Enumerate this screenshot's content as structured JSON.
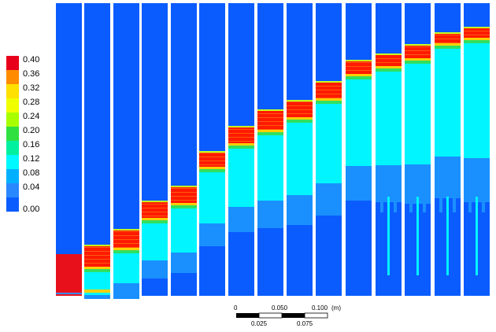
{
  "legend": {
    "labels": [
      "0.40",
      "0.36",
      "0.32",
      "0.28",
      "0.24",
      "0.20",
      "0.16",
      "0.12",
      "0.08",
      "0.04",
      "0.00"
    ],
    "colors": [
      "#ff1a00",
      "#ff8a00",
      "#ffd800",
      "#f2ff00",
      "#8cff00",
      "#20e83a",
      "#00ffb0",
      "#00fff0",
      "#00b8ff",
      "#3a8cff",
      "#0a5cff"
    ]
  },
  "scale_bar": {
    "top_labels": [
      "0",
      "0.050",
      "0.100"
    ],
    "unit": "(m)",
    "bottom_labels": [
      "0.025",
      "0.075"
    ]
  },
  "colors": {
    "background": "#0a5cff",
    "hot": "#ff1a00",
    "cyan": "#00f5ff",
    "light_blue": "#1a8cff"
  }
}
